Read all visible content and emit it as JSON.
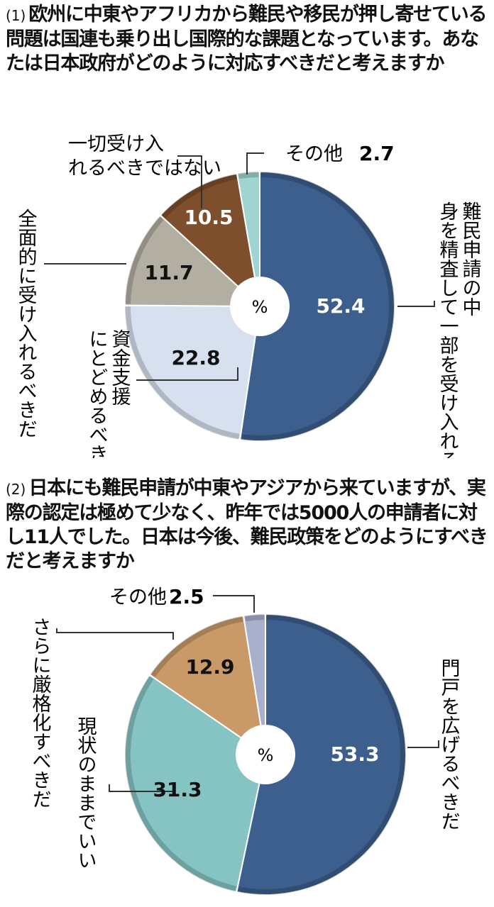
{
  "chart_data": [
    {
      "type": "pie",
      "number": "(1)",
      "title": "欧州に中東やアフリカから難民や移民が押し寄せている問題は国連も乗り出し国際的な課題となっています。あなたは日本政府がどのように対応すべきだと考えますか",
      "unit": "%",
      "slices": [
        {
          "label": "難民申請の中身を精査して一部を受け入れるべきだ",
          "value": 52.4,
          "color": "#3d5f8d"
        },
        {
          "label": "資金支援にとどめるべきだ",
          "value": 22.8,
          "color": "#d6e0ef"
        },
        {
          "label": "全面的に受け入れるべきだ",
          "value": 11.7,
          "color": "#b3aea2"
        },
        {
          "label": "一切受け入れるべきではない",
          "value": 10.5,
          "color": "#7e4f2d"
        },
        {
          "label": "その他",
          "value": 2.7,
          "color": "#9fd4d0"
        }
      ]
    },
    {
      "type": "pie",
      "number": "(2)",
      "title": "日本にも難民申請が中東やアジアから来ていますが、実際の認定は極めて少なく、昨年では5000人の申請者に対し11人でした。日本は今後、難民政策をどのようにすべきだと考えますか",
      "unit": "%",
      "slices": [
        {
          "label": "門戸を広げるべきだ",
          "value": 53.3,
          "color": "#3d5f8d"
        },
        {
          "label": "現状のままでいい",
          "value": 31.3,
          "color": "#86c4c4"
        },
        {
          "label": "さらに厳格化すべきだ",
          "value": 12.9,
          "color": "#c99a68"
        },
        {
          "label": "その他",
          "value": 2.5,
          "color": "#a8b0cc"
        }
      ]
    }
  ]
}
